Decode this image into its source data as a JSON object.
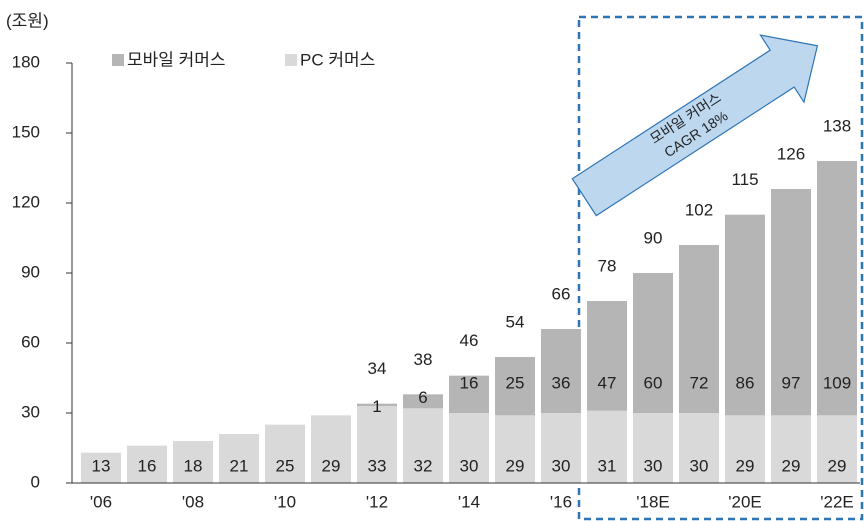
{
  "chart_data": {
    "type": "bar",
    "stacked": true,
    "unit_label": "(조원)",
    "categories": [
      "'06",
      null,
      "'08",
      null,
      "'10",
      null,
      "'12",
      null,
      "'14",
      null,
      "'16",
      null,
      "'18E",
      null,
      "'20E",
      null,
      "'22E"
    ],
    "series": [
      {
        "name": "PC 커머스",
        "color": "#d9d9d9",
        "values": [
          13,
          16,
          18,
          21,
          25,
          29,
          33,
          32,
          30,
          29,
          30,
          31,
          30,
          30,
          29,
          29,
          29
        ]
      },
      {
        "name": "모바일 커머스",
        "color": "#b5b5b5",
        "values": [
          null,
          null,
          null,
          null,
          null,
          null,
          1,
          6,
          16,
          25,
          36,
          47,
          60,
          72,
          86,
          97,
          109
        ]
      }
    ],
    "totals": [
      null,
      null,
      null,
      null,
      null,
      null,
      34,
      38,
      46,
      54,
      66,
      78,
      90,
      102,
      115,
      126,
      138
    ],
    "annotation": [
      "모바일 커머스",
      "CAGR 18%"
    ],
    "ylim": [
      0,
      180
    ],
    "yticks": [
      0,
      30,
      60,
      90,
      120,
      150,
      180
    ]
  }
}
